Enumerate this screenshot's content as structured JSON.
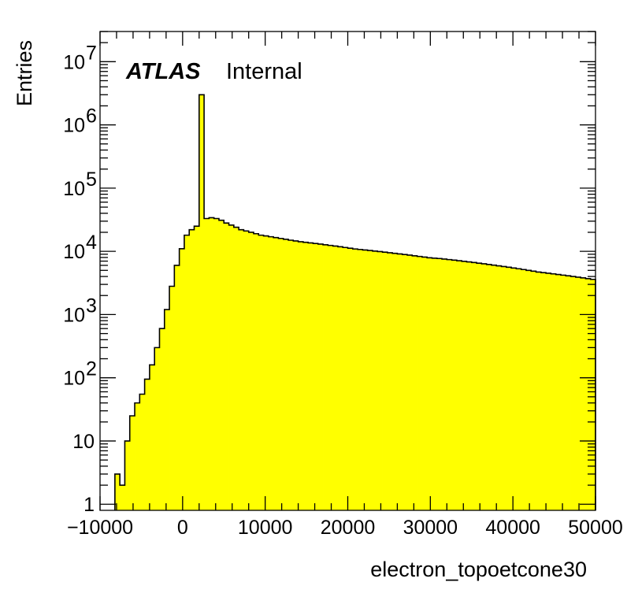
{
  "chart_data": {
    "type": "bar",
    "title": "",
    "xlabel": "electron_topoetcone30",
    "ylabel": "Entries",
    "xlim": [
      -10000,
      50000
    ],
    "ylim": [
      0.8,
      30000000
    ],
    "yscale": "log",
    "bin_width": 600,
    "bin_start": -10000,
    "fill_color": "#ffff00",
    "line_color": "#000000",
    "x_tick_labels": [
      "−10000",
      "0",
      "10000",
      "20000",
      "30000",
      "40000",
      "50000"
    ],
    "x_tick_values": [
      -10000,
      0,
      10000,
      20000,
      30000,
      40000,
      50000
    ],
    "y_tick_values": [
      1,
      10,
      100,
      1000,
      10000,
      100000,
      1000000,
      10000000
    ],
    "y_tick_labels": [
      {
        "base": "1",
        "exp": ""
      },
      {
        "base": "10",
        "exp": ""
      },
      {
        "base": "10",
        "exp": "2"
      },
      {
        "base": "10",
        "exp": "3"
      },
      {
        "base": "10",
        "exp": "4"
      },
      {
        "base": "10",
        "exp": "5"
      },
      {
        "base": "10",
        "exp": "6"
      },
      {
        "base": "10",
        "exp": "7"
      }
    ],
    "values": [
      0,
      0,
      0,
      3,
      2,
      10,
      25,
      40,
      55,
      95,
      160,
      300,
      600,
      1200,
      2800,
      6000,
      11000,
      18000,
      22000,
      25000,
      3000000,
      33000,
      34000,
      33000,
      31000,
      28000,
      26000,
      24000,
      22000,
      21000,
      20000,
      19000,
      18000,
      17500,
      17000,
      16500,
      16000,
      15500,
      15000,
      14600,
      14200,
      13900,
      13600,
      13300,
      13000,
      12700,
      12400,
      12100,
      11800,
      11500,
      11200,
      10900,
      10700,
      10500,
      10300,
      10100,
      9900,
      9700,
      9500,
      9300,
      9100,
      8900,
      8700,
      8500,
      8300,
      8100,
      7900,
      7800,
      7700,
      7550,
      7400,
      7250,
      7100,
      6950,
      6800,
      6650,
      6500,
      6350,
      6200,
      6050,
      5900,
      5750,
      5600,
      5450,
      5300,
      5150,
      5000,
      4850,
      4700,
      4600,
      4500,
      4400,
      4300,
      4200,
      4100,
      4000,
      3900,
      3800,
      3700,
      3600
    ]
  },
  "annotation": {
    "bold_italic": "ATLAS",
    "normal": "Internal"
  }
}
